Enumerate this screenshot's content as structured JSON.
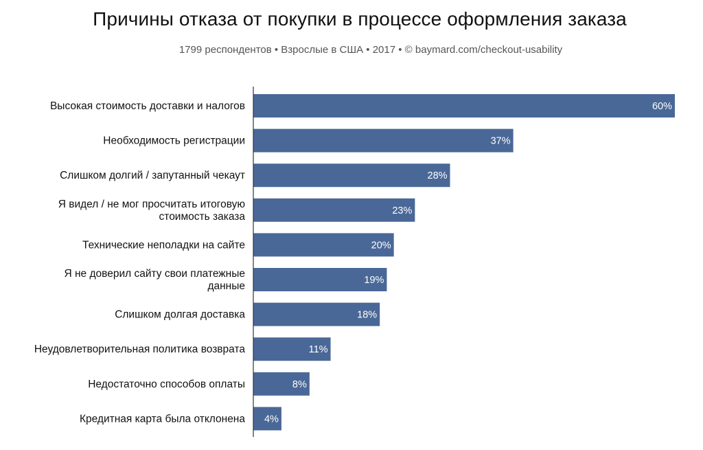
{
  "title": "Причины отказа от покупки в процессе оформления заказа",
  "subtitle": "1799 респондентов • Взрослые в США • 2017 • © baymard.com/checkout-usability",
  "colors": {
    "bar": "#4a6897",
    "axis": "#333333",
    "label_text": "#ffffff"
  },
  "chart_data": {
    "type": "bar",
    "orientation": "horizontal",
    "title": "Причины отказа от покупки в процессе оформления заказа",
    "subtitle": "1799 респондентов • Взрослые в США • 2017 • © baymard.com/checkout-usability",
    "categories": [
      [
        "Высокая стоимость доставки и налогов"
      ],
      [
        "Необходимость регистрации"
      ],
      [
        "Слишком долгий / запутанный чекаут"
      ],
      [
        "Я видел / не мог просчитать итоговую",
        "стоимость заказа"
      ],
      [
        "Технические неполадки на сайте"
      ],
      [
        "Я не доверил сайту свои платежные",
        "данные"
      ],
      [
        "Слишком долгая доставка"
      ],
      [
        "Неудовлетворительная политика возврата"
      ],
      [
        "Недостаточно способов оплаты"
      ],
      [
        "Кредитная карта была отклонена"
      ]
    ],
    "values": [
      60,
      37,
      28,
      23,
      20,
      19,
      18,
      11,
      8,
      4
    ],
    "value_labels": [
      "60%",
      "37%",
      "28%",
      "23%",
      "20%",
      "19%",
      "18%",
      "11%",
      "8%",
      "4%"
    ],
    "unit": "%",
    "xlim": [
      0,
      60
    ]
  }
}
